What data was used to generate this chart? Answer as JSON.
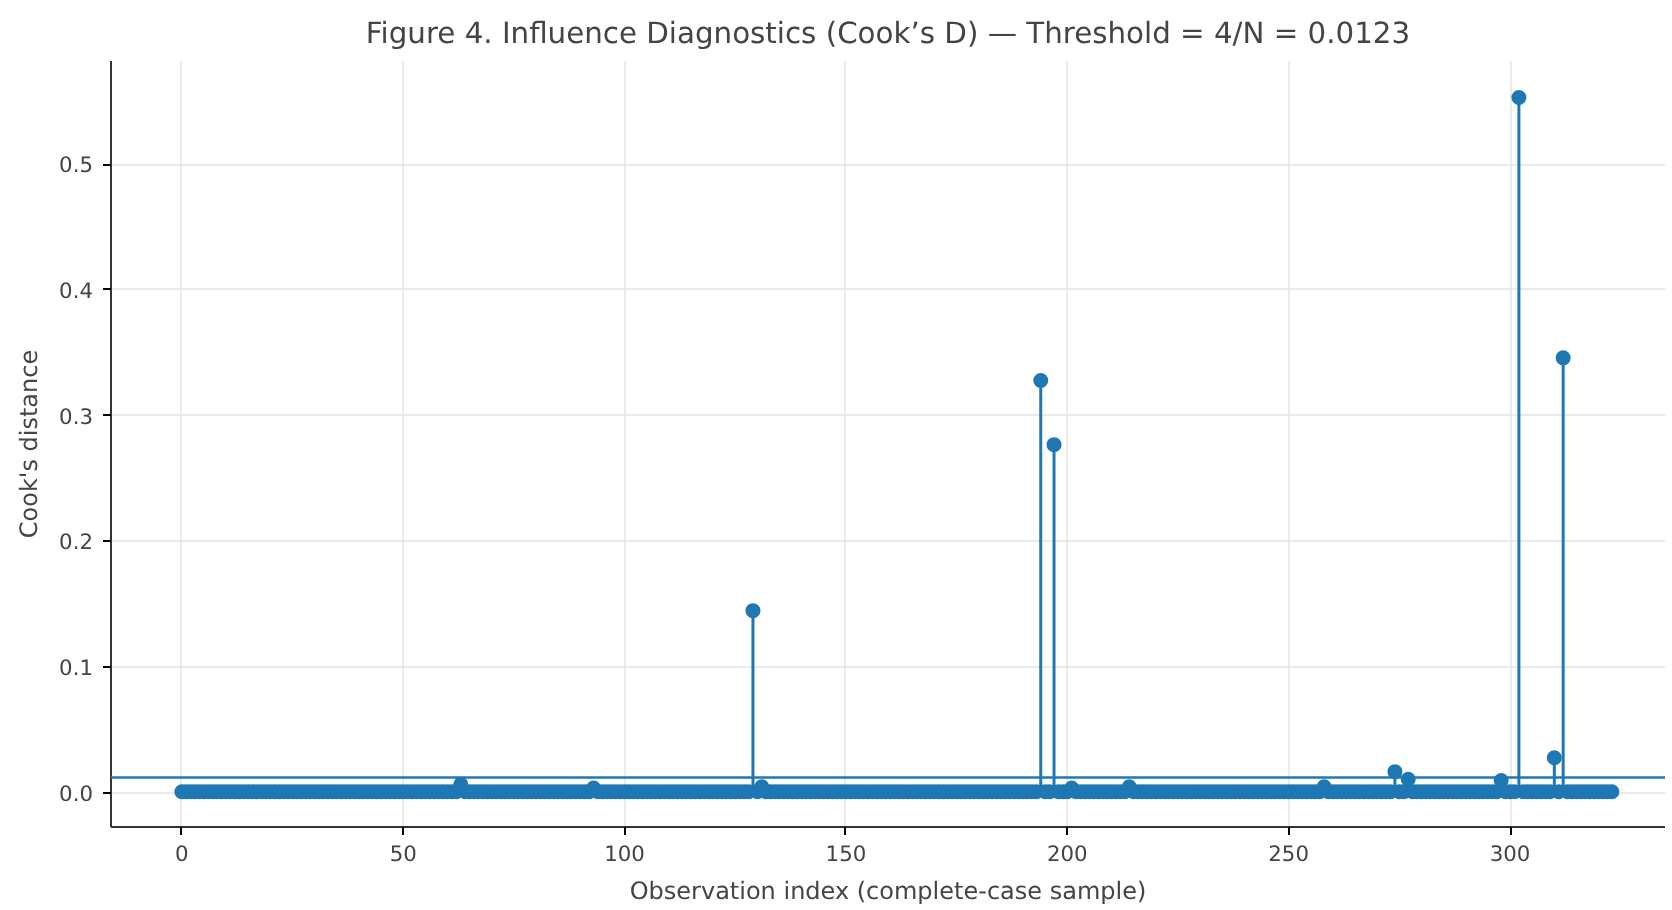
{
  "chart_data": {
    "type": "lollipop",
    "title": "Figure 4. Influence Diagnostics (Cook’s D) — Threshold = 4/N = 0.0123",
    "xlabel": "Observation index (complete-case sample)",
    "ylabel": "Cook's distance",
    "x": [
      0,
      1,
      2,
      3,
      4,
      5,
      6,
      7,
      8,
      9,
      10,
      11,
      12,
      13,
      14,
      15,
      16,
      17,
      18,
      19,
      20,
      21,
      22,
      23,
      24,
      25,
      26,
      27,
      28,
      29,
      30,
      31,
      32,
      33,
      34,
      35,
      36,
      37,
      38,
      39,
      40,
      41,
      42,
      43,
      44,
      45,
      46,
      47,
      48,
      49,
      50,
      51,
      52,
      53,
      54,
      55,
      56,
      57,
      58,
      59,
      60,
      61,
      62,
      63,
      64,
      65,
      66,
      67,
      68,
      69,
      70,
      71,
      72,
      73,
      74,
      75,
      76,
      77,
      78,
      79,
      80,
      81,
      82,
      83,
      84,
      85,
      86,
      87,
      88,
      89,
      90,
      91,
      92,
      93,
      94,
      95,
      96,
      97,
      98,
      99,
      100,
      101,
      102,
      103,
      104,
      105,
      106,
      107,
      108,
      109,
      110,
      111,
      112,
      113,
      114,
      115,
      116,
      117,
      118,
      119,
      120,
      121,
      122,
      123,
      124,
      125,
      126,
      127,
      128,
      129,
      130,
      131,
      132,
      133,
      134,
      135,
      136,
      137,
      138,
      139,
      140,
      141,
      142,
      143,
      144,
      145,
      146,
      147,
      148,
      149,
      150,
      151,
      152,
      153,
      154,
      155,
      156,
      157,
      158,
      159,
      160,
      161,
      162,
      163,
      164,
      165,
      166,
      167,
      168,
      169,
      170,
      171,
      172,
      173,
      174,
      175,
      176,
      177,
      178,
      179,
      180,
      181,
      182,
      183,
      184,
      185,
      186,
      187,
      188,
      189,
      190,
      191,
      192,
      193,
      194,
      195,
      196,
      197,
      198,
      199,
      200,
      201,
      202,
      203,
      204,
      205,
      206,
      207,
      208,
      209,
      210,
      211,
      212,
      213,
      214,
      215,
      216,
      217,
      218,
      219,
      220,
      221,
      222,
      223,
      224,
      225,
      226,
      227,
      228,
      229,
      230,
      231,
      232,
      233,
      234,
      235,
      236,
      237,
      238,
      239,
      240,
      241,
      242,
      243,
      244,
      245,
      246,
      247,
      248,
      249,
      250,
      251,
      252,
      253,
      254,
      255,
      256,
      257,
      258,
      259,
      260,
      261,
      262,
      263,
      264,
      265,
      266,
      267,
      268,
      269,
      270,
      271,
      272,
      273,
      274,
      275,
      276,
      277,
      278,
      279,
      280,
      281,
      282,
      283,
      284,
      285,
      286,
      287,
      288,
      289,
      290,
      291,
      292,
      293,
      294,
      295,
      296,
      297,
      298,
      299,
      300,
      301,
      302,
      303,
      304,
      305,
      306,
      307,
      308,
      309,
      310,
      311,
      312,
      313,
      314,
      315,
      316,
      317,
      318,
      319,
      320,
      321,
      322,
      323
    ],
    "series": [
      {
        "color": "#1f77b4",
        "values": [
          0.001,
          0.001,
          0.001,
          0.001,
          0.001,
          0.001,
          0.001,
          0.001,
          0.001,
          0.001,
          0.001,
          0.001,
          0.001,
          0.001,
          0.001,
          0.001,
          0.001,
          0.001,
          0.001,
          0.001,
          0.001,
          0.001,
          0.001,
          0.001,
          0.001,
          0.001,
          0.001,
          0.001,
          0.001,
          0.001,
          0.001,
          0.001,
          0.001,
          0.001,
          0.001,
          0.001,
          0.001,
          0.001,
          0.001,
          0.001,
          0.001,
          0.001,
          0.001,
          0.001,
          0.001,
          0.001,
          0.001,
          0.001,
          0.001,
          0.001,
          0.001,
          0.001,
          0.001,
          0.001,
          0.001,
          0.001,
          0.001,
          0.001,
          0.001,
          0.001,
          0.001,
          0.001,
          0.001,
          0.007,
          0.001,
          0.001,
          0.001,
          0.001,
          0.001,
          0.001,
          0.001,
          0.001,
          0.001,
          0.001,
          0.001,
          0.001,
          0.001,
          0.001,
          0.001,
          0.001,
          0.001,
          0.001,
          0.001,
          0.001,
          0.001,
          0.001,
          0.001,
          0.001,
          0.001,
          0.001,
          0.001,
          0.001,
          0.001,
          0.004,
          0.001,
          0.001,
          0.001,
          0.001,
          0.001,
          0.001,
          0.001,
          0.001,
          0.001,
          0.001,
          0.001,
          0.001,
          0.001,
          0.001,
          0.001,
          0.001,
          0.001,
          0.001,
          0.001,
          0.001,
          0.001,
          0.001,
          0.001,
          0.001,
          0.001,
          0.001,
          0.001,
          0.001,
          0.001,
          0.001,
          0.001,
          0.001,
          0.001,
          0.001,
          0.001,
          0.145,
          0.001,
          0.005,
          0.001,
          0.001,
          0.001,
          0.001,
          0.001,
          0.001,
          0.001,
          0.001,
          0.001,
          0.001,
          0.001,
          0.001,
          0.001,
          0.001,
          0.001,
          0.001,
          0.001,
          0.001,
          0.001,
          0.001,
          0.001,
          0.001,
          0.001,
          0.001,
          0.001,
          0.001,
          0.001,
          0.001,
          0.001,
          0.001,
          0.001,
          0.001,
          0.001,
          0.001,
          0.001,
          0.001,
          0.001,
          0.001,
          0.001,
          0.001,
          0.001,
          0.001,
          0.001,
          0.001,
          0.001,
          0.001,
          0.001,
          0.001,
          0.001,
          0.001,
          0.001,
          0.001,
          0.001,
          0.001,
          0.001,
          0.001,
          0.001,
          0.001,
          0.001,
          0.001,
          0.001,
          0.001,
          0.328,
          0.001,
          0.001,
          0.277,
          0.001,
          0.001,
          0.001,
          0.004,
          0.001,
          0.001,
          0.001,
          0.001,
          0.001,
          0.001,
          0.001,
          0.001,
          0.001,
          0.001,
          0.001,
          0.001,
          0.005,
          0.001,
          0.001,
          0.001,
          0.001,
          0.001,
          0.001,
          0.001,
          0.001,
          0.001,
          0.001,
          0.001,
          0.001,
          0.001,
          0.001,
          0.001,
          0.001,
          0.001,
          0.001,
          0.001,
          0.001,
          0.001,
          0.001,
          0.001,
          0.001,
          0.001,
          0.001,
          0.001,
          0.001,
          0.001,
          0.001,
          0.001,
          0.001,
          0.001,
          0.001,
          0.001,
          0.001,
          0.001,
          0.001,
          0.001,
          0.001,
          0.001,
          0.001,
          0.001,
          0.005,
          0.001,
          0.001,
          0.001,
          0.001,
          0.001,
          0.001,
          0.001,
          0.001,
          0.001,
          0.001,
          0.001,
          0.001,
          0.001,
          0.001,
          0.001,
          0.017,
          0.001,
          0.001,
          0.011,
          0.001,
          0.001,
          0.001,
          0.001,
          0.001,
          0.001,
          0.001,
          0.001,
          0.001,
          0.001,
          0.001,
          0.001,
          0.001,
          0.001,
          0.001,
          0.001,
          0.001,
          0.001,
          0.001,
          0.001,
          0.01,
          0.001,
          0.001,
          0.001,
          0.553,
          0.001,
          0.001,
          0.001,
          0.001,
          0.001,
          0.001,
          0.001,
          0.028,
          0.001,
          0.346,
          0.001,
          0.001,
          0.001,
          0.001,
          0.001,
          0.001,
          0.001,
          0.001,
          0.001,
          0.001,
          0.001
        ]
      }
    ],
    "xlim": [
      -16,
      335
    ],
    "ylim": [
      -0.027,
      0.582
    ],
    "xticks": [
      0,
      50,
      100,
      150,
      200,
      250,
      300
    ],
    "yticks": [
      {
        "value": 0,
        "label": "0.0"
      },
      {
        "value": 0.1,
        "label": "0.1"
      },
      {
        "value": 0.2,
        "label": "0.2"
      },
      {
        "value": 0.3,
        "label": "0.3"
      },
      {
        "value": 0.4,
        "label": "0.4"
      },
      {
        "value": 0.5,
        "label": "0.5"
      }
    ],
    "ref_lines": [
      {
        "axis": "y",
        "value": 0.0123,
        "color": "#1f77b4",
        "line_style": "solid"
      }
    ],
    "grid": true,
    "marker": "circle"
  }
}
